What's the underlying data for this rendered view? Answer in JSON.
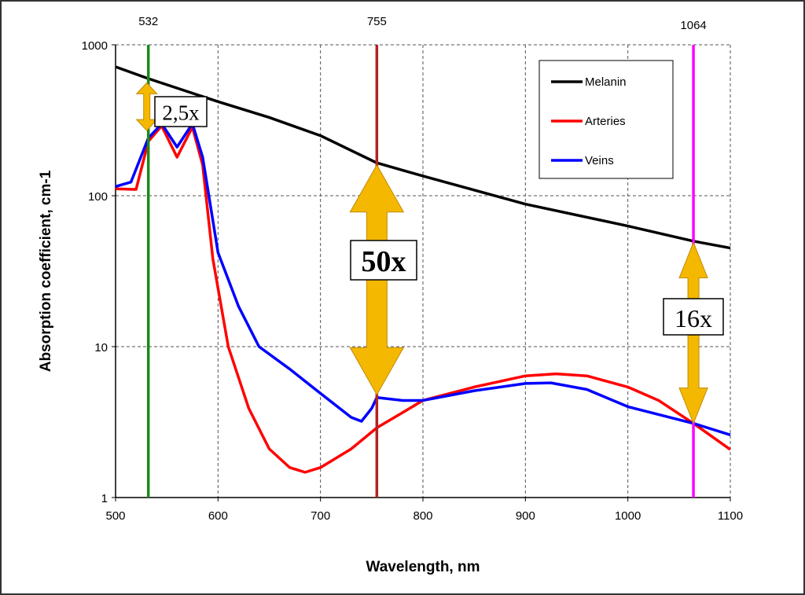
{
  "chart_data": {
    "type": "line",
    "title": "",
    "xlabel": "Wavelength, nm",
    "ylabel": "Absorption coefficient, cm-1",
    "xlim": [
      500,
      1100
    ],
    "ylim": [
      1,
      1000
    ],
    "yscale": "log",
    "grid": true,
    "x_ticks": [
      "500",
      "600",
      "700",
      "800",
      "900",
      "1000",
      "1100"
    ],
    "y_ticks": [
      "1",
      "10",
      "100",
      "1000"
    ],
    "legend": {
      "placement": "top-right",
      "entries": [
        "Melanin",
        "Arteries",
        "Veins"
      ]
    },
    "series": [
      {
        "name": "Melanin",
        "color": "#000000",
        "points": [
          [
            500,
            715
          ],
          [
            532,
            597
          ],
          [
            600,
            420
          ],
          [
            650,
            330
          ],
          [
            700,
            250
          ],
          [
            755,
            165
          ],
          [
            800,
            135
          ],
          [
            900,
            88
          ],
          [
            1000,
            63
          ],
          [
            1064,
            50
          ],
          [
            1100,
            45
          ]
        ]
      },
      {
        "name": "Arteries",
        "color": "#ff0000",
        "points": [
          [
            500,
            111
          ],
          [
            520,
            110
          ],
          [
            532,
            229
          ],
          [
            545,
            290
          ],
          [
            560,
            180
          ],
          [
            575,
            285
          ],
          [
            585,
            160
          ],
          [
            595,
            38
          ],
          [
            610,
            10
          ],
          [
            630,
            3.9
          ],
          [
            650,
            2.1
          ],
          [
            670,
            1.58
          ],
          [
            685,
            1.47
          ],
          [
            700,
            1.58
          ],
          [
            730,
            2.1
          ],
          [
            755,
            2.9
          ],
          [
            780,
            3.65
          ],
          [
            800,
            4.4
          ],
          [
            850,
            5.4
          ],
          [
            900,
            6.4
          ],
          [
            930,
            6.6
          ],
          [
            960,
            6.4
          ],
          [
            1000,
            5.4
          ],
          [
            1030,
            4.4
          ],
          [
            1064,
            3.1
          ],
          [
            1100,
            2.08
          ]
        ]
      },
      {
        "name": "Veins",
        "color": "#0000ff",
        "points": [
          [
            500,
            115
          ],
          [
            515,
            123
          ],
          [
            532,
            241
          ],
          [
            545,
            300
          ],
          [
            560,
            210
          ],
          [
            575,
            300
          ],
          [
            585,
            180
          ],
          [
            600,
            42
          ],
          [
            620,
            18.5
          ],
          [
            640,
            10
          ],
          [
            670,
            7.1
          ],
          [
            700,
            4.9
          ],
          [
            730,
            3.4
          ],
          [
            740,
            3.2
          ],
          [
            750,
            3.9
          ],
          [
            755,
            4.6
          ],
          [
            780,
            4.4
          ],
          [
            800,
            4.4
          ],
          [
            850,
            5.1
          ],
          [
            900,
            5.7
          ],
          [
            925,
            5.75
          ],
          [
            960,
            5.2
          ],
          [
            1000,
            4.0
          ],
          [
            1064,
            3.1
          ],
          [
            1100,
            2.6
          ]
        ]
      }
    ],
    "markers": [
      {
        "wavelength": 532,
        "label": "532",
        "color": "#1a8a1a"
      },
      {
        "wavelength": 755,
        "label": "755",
        "color": "#b22222"
      },
      {
        "wavelength": 1064,
        "label": "1064",
        "color": "#ff00ff"
      }
    ],
    "annotations": [
      {
        "label": "2,5x",
        "wavelength": 532,
        "from": 270,
        "to": 560
      },
      {
        "label": "50x",
        "wavelength": 755,
        "from": 4.8,
        "to": 160
      },
      {
        "label": "16x",
        "wavelength": 1064,
        "from": 3.1,
        "to": 49
      }
    ]
  }
}
